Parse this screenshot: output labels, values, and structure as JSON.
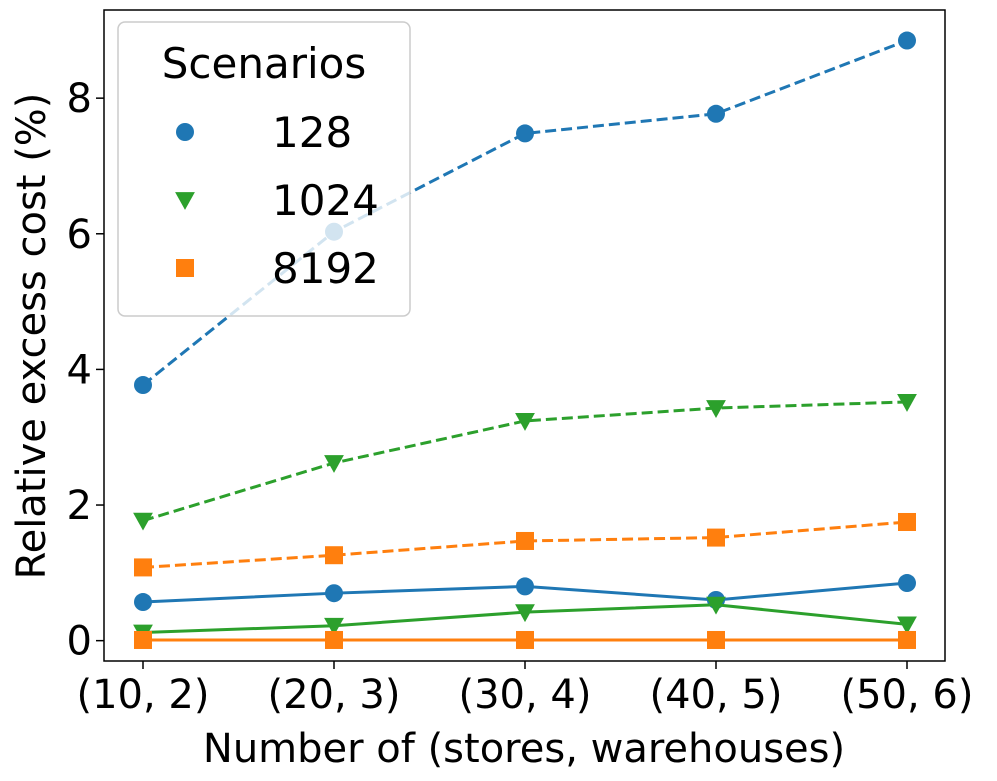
{
  "chart_data": {
    "type": "line",
    "title": "",
    "xlabel": "Number of (stores, warehouses)",
    "ylabel": "Relative excess cost (%)",
    "categories": [
      "(10, 2)",
      "(20, 3)",
      "(30, 4)",
      "(40, 5)",
      "(50, 6)"
    ],
    "ylim": [
      -0.3,
      9.3
    ],
    "yticks": [
      "0",
      "2",
      "4",
      "6",
      "8"
    ],
    "grid": false,
    "legend": {
      "title": "Scenarios",
      "placement": "top-left",
      "entries": [
        {
          "label": "128",
          "color": "#1f77b4",
          "marker": "circle"
        },
        {
          "label": "1024",
          "color": "#2ca02c",
          "marker": "triangle-down"
        },
        {
          "label": "8192",
          "color": "#ff7f0e",
          "marker": "square"
        }
      ]
    },
    "series": [
      {
        "legend": "128",
        "style": "dashed",
        "color": "#1f77b4",
        "marker": "circle",
        "values": [
          3.77,
          6.03,
          7.48,
          7.77,
          8.85
        ]
      },
      {
        "legend": "1024",
        "style": "dashed",
        "color": "#2ca02c",
        "marker": "triangle-down",
        "values": [
          1.77,
          2.62,
          3.24,
          3.43,
          3.52
        ]
      },
      {
        "legend": "8192",
        "style": "dashed",
        "color": "#ff7f0e",
        "marker": "square",
        "values": [
          1.08,
          1.26,
          1.47,
          1.52,
          1.75
        ]
      },
      {
        "legend": "128",
        "style": "solid",
        "color": "#1f77b4",
        "marker": "circle",
        "values": [
          0.57,
          0.7,
          0.8,
          0.6,
          0.85
        ]
      },
      {
        "legend": "1024",
        "style": "solid",
        "color": "#2ca02c",
        "marker": "triangle-down",
        "values": [
          0.12,
          0.22,
          0.42,
          0.53,
          0.24
        ]
      },
      {
        "legend": "8192",
        "style": "solid",
        "color": "#ff7f0e",
        "marker": "square",
        "values": [
          0.01,
          0.01,
          0.01,
          0.01,
          0.01
        ]
      }
    ]
  }
}
